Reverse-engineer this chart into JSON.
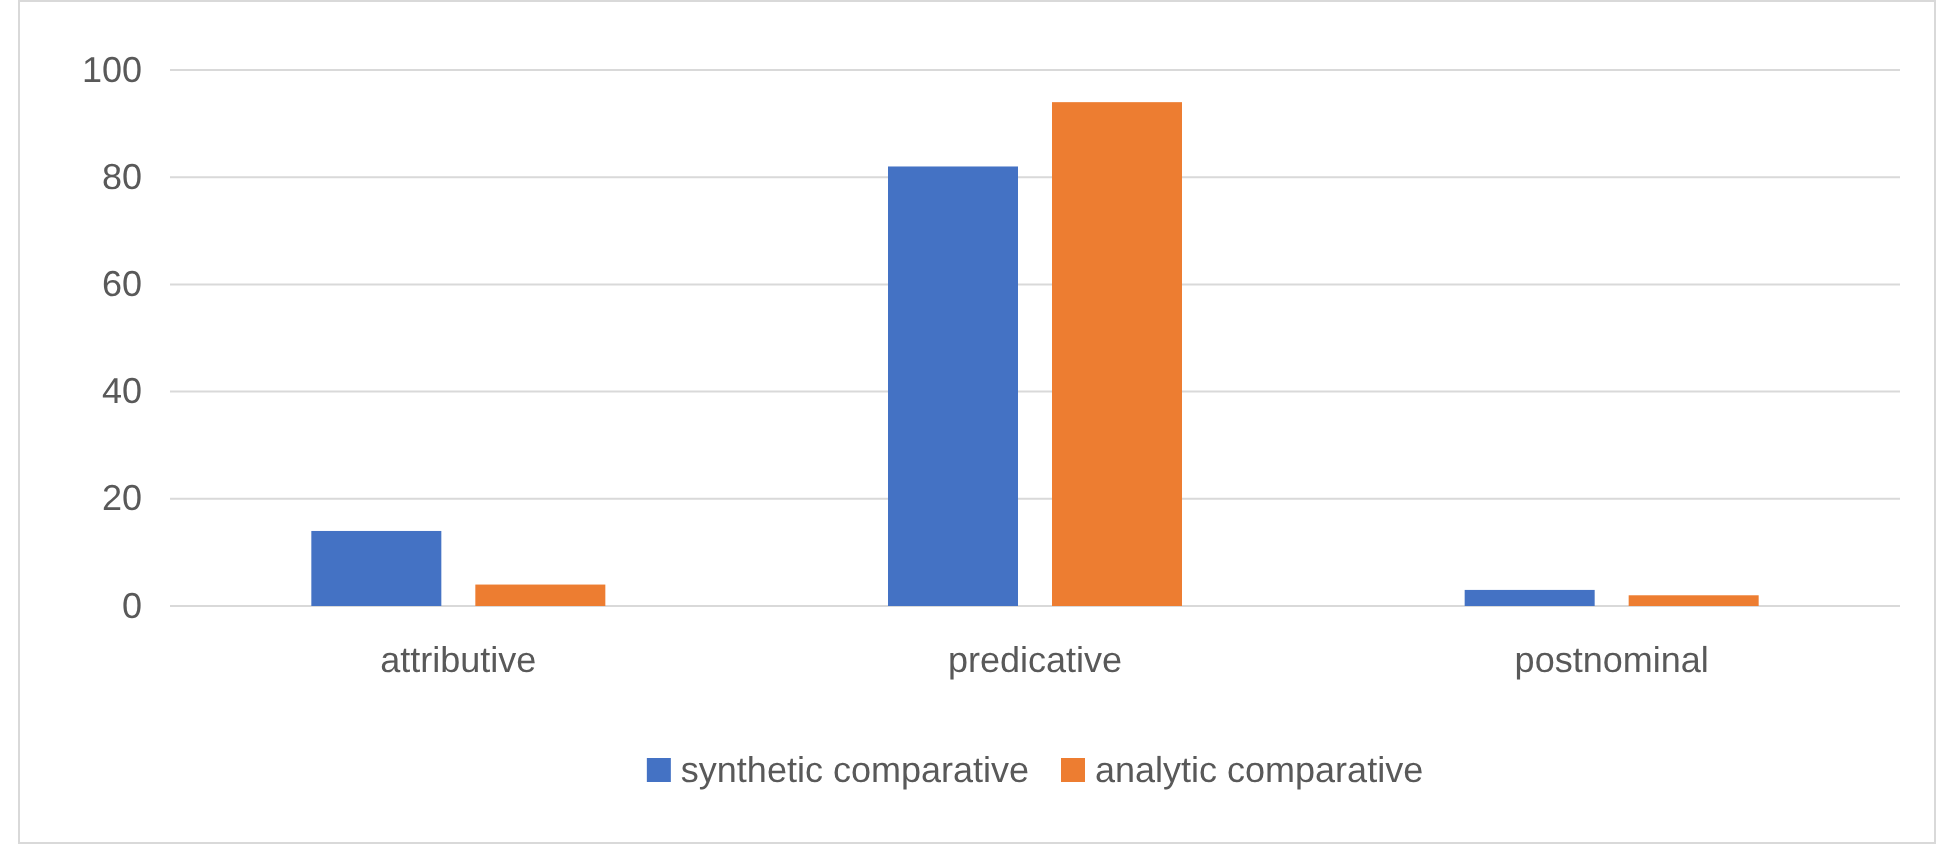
{
  "chart_data": {
    "type": "bar",
    "categories": [
      "attributive",
      "predicative",
      "postnominal"
    ],
    "series": [
      {
        "name": "synthetic comparative",
        "color": "#4472c4",
        "values": [
          14,
          82,
          3
        ]
      },
      {
        "name": "analytic comparative",
        "color": "#ed7d31",
        "values": [
          4,
          94,
          2
        ]
      }
    ],
    "ylim": [
      0,
      100
    ],
    "yticks": [
      0,
      20,
      40,
      60,
      80,
      100
    ],
    "grid": "y",
    "legend": "bottom"
  }
}
